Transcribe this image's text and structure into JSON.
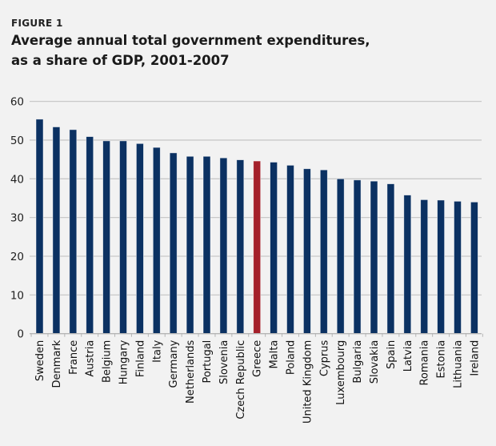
{
  "figure_label": "FIGURE 1",
  "title_lines": [
    "Average annual total government expenditures,",
    "as a share of GDP, 2001-2007"
  ],
  "colors": {
    "bar": "#0b3162",
    "highlight": "#a4202a",
    "grid": "#c9c9c9",
    "background": "#f2f2f2"
  },
  "chart_data": {
    "type": "bar",
    "title": "Average annual total government expenditures, as a share of GDP, 2001-2007",
    "xlabel": "",
    "ylabel": "",
    "ylim": [
      0,
      60
    ],
    "yticks": [
      0,
      10,
      20,
      30,
      40,
      50,
      60
    ],
    "grid": true,
    "legend": "none",
    "highlight": "Greece",
    "categories": [
      "Sweden",
      "Denmark",
      "France",
      "Austria",
      "Belgium",
      "Hungary",
      "Finland",
      "Italy",
      "Germany",
      "Netherlands",
      "Portugal",
      "Slovenia",
      "Czech Republic",
      "Greece",
      "Malta",
      "Poland",
      "United Kingdom",
      "Cyprus",
      "Luxembourg",
      "Bulgaria",
      "Slovakia",
      "Spain",
      "Latvia",
      "Romania",
      "Estonia",
      "Lithuania",
      "Ireland"
    ],
    "values": [
      55.4,
      53.4,
      52.7,
      50.9,
      49.8,
      49.8,
      49.1,
      48.1,
      46.7,
      45.8,
      45.8,
      45.4,
      44.9,
      44.6,
      44.3,
      43.5,
      42.6,
      42.3,
      40.0,
      39.7,
      39.4,
      38.7,
      35.8,
      34.6,
      34.5,
      34.2,
      34.0
    ]
  }
}
